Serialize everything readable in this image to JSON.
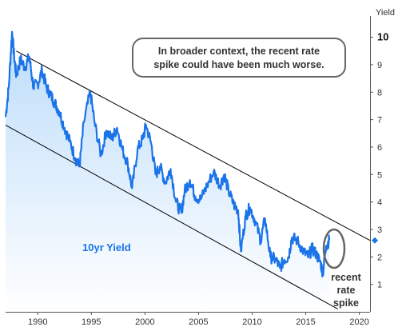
{
  "chart_data": {
    "type": "line",
    "ylabel": "Yield",
    "series_label": "10yr Yield",
    "last_value": 2.6,
    "xlim": [
      1987.0,
      2021.0
    ],
    "ylim": [
      0,
      10.6
    ],
    "xticks": [
      1990,
      1995,
      2000,
      2005,
      2010,
      2015,
      2020
    ],
    "yticks": [
      1,
      2,
      3,
      4,
      5,
      6,
      7,
      8,
      9,
      10
    ],
    "callout": "In broader context, the recent rate spike could have been much worse.",
    "callout_lines": [
      "In broader context, the recent rate",
      "spike could have been much worse."
    ],
    "spike_annotation_lines": [
      "recent",
      "rate",
      "spike"
    ],
    "channel_upper": [
      [
        1988.0,
        9.5
      ],
      [
        2021.0,
        2.6
      ]
    ],
    "channel_lower": [
      [
        1987.0,
        6.8
      ],
      [
        2018.0,
        0.1
      ]
    ],
    "colors": {
      "line": "#1a73e8",
      "fill_top": "#bcdcfa",
      "fill_bottom": "#ffffff",
      "channel": "#000000",
      "marker": "#1a73e8",
      "label": "#1a73e8",
      "callout_border": "#666666"
    },
    "series": [
      {
        "name": "10yr Yield",
        "x": [
          1987.0,
          1987.3,
          1987.6,
          1987.8,
          1988.0,
          1988.4,
          1988.8,
          1989.2,
          1989.6,
          1990.0,
          1990.4,
          1990.8,
          1991.2,
          1991.6,
          1992.0,
          1992.5,
          1993.0,
          1993.5,
          1993.9,
          1994.3,
          1994.9,
          1995.3,
          1995.9,
          1996.4,
          1996.9,
          1997.4,
          1997.9,
          1998.4,
          1998.8,
          1999.3,
          1999.8,
          2000.1,
          2000.6,
          2001.0,
          2001.4,
          2001.9,
          2002.4,
          2002.9,
          2003.4,
          2003.7,
          2004.2,
          2004.7,
          2005.2,
          2005.8,
          2006.4,
          2007.0,
          2007.4,
          2007.8,
          2008.3,
          2008.7,
          2008.95,
          2009.4,
          2009.8,
          2010.3,
          2010.8,
          2011.2,
          2011.7,
          2012.2,
          2012.6,
          2013.0,
          2013.4,
          2013.7,
          2014.2,
          2014.8,
          2015.2,
          2015.6,
          2016.0,
          2016.4,
          2016.6,
          2016.9,
          2017.2
        ],
        "values": [
          7.1,
          8.2,
          10.2,
          9.3,
          8.6,
          9.2,
          8.9,
          9.3,
          8.2,
          8.3,
          8.8,
          8.2,
          7.9,
          7.6,
          7.3,
          6.7,
          6.2,
          5.6,
          5.3,
          6.9,
          8.0,
          6.9,
          5.7,
          6.6,
          6.3,
          6.7,
          5.9,
          5.4,
          4.5,
          5.9,
          6.3,
          6.8,
          6.1,
          5.0,
          5.3,
          4.7,
          5.2,
          4.0,
          3.6,
          4.4,
          4.8,
          4.2,
          4.1,
          4.6,
          5.1,
          4.6,
          5.0,
          4.4,
          3.9,
          3.7,
          2.2,
          3.5,
          3.8,
          3.3,
          2.6,
          3.4,
          2.0,
          1.9,
          1.6,
          1.9,
          2.0,
          2.7,
          2.6,
          2.2,
          2.0,
          2.3,
          2.1,
          1.75,
          1.4,
          2.4,
          2.6
        ]
      }
    ]
  }
}
